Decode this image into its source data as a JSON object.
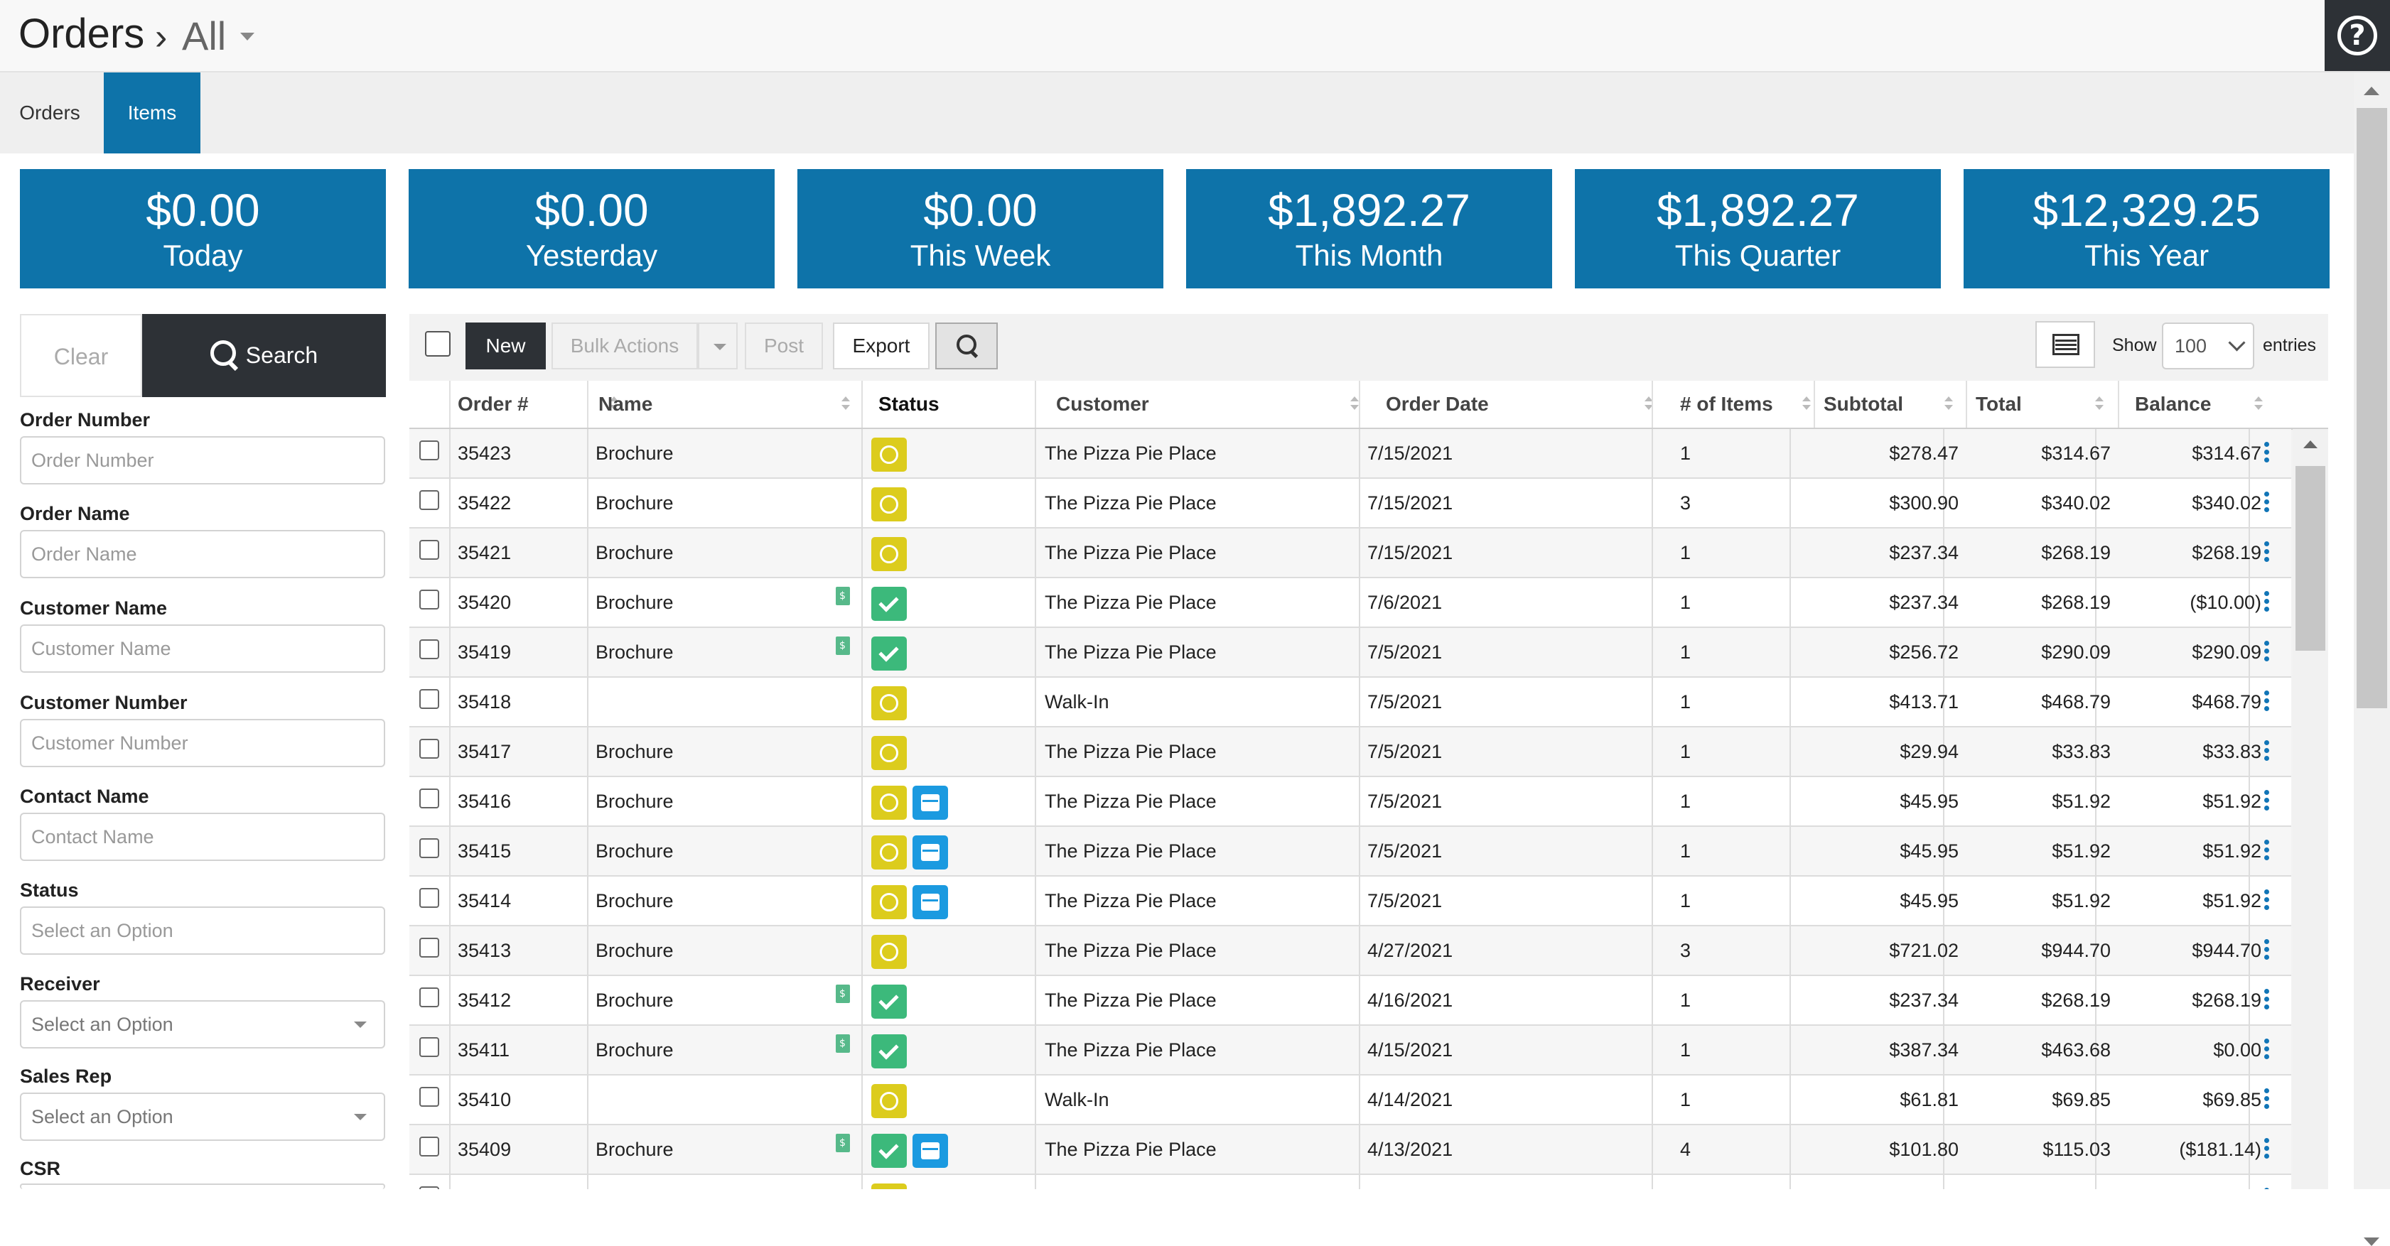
{
  "header": {
    "title": "Orders",
    "filter_value": "All"
  },
  "tabs": [
    {
      "label": "Orders"
    },
    {
      "label": "Items"
    }
  ],
  "summary": [
    {
      "amount": "$0.00",
      "label": "Today"
    },
    {
      "amount": "$0.00",
      "label": "Yesterday"
    },
    {
      "amount": "$0.00",
      "label": "This Week"
    },
    {
      "amount": "$1,892.27",
      "label": "This Month"
    },
    {
      "amount": "$1,892.27",
      "label": "This Quarter"
    },
    {
      "amount": "$12,329.25",
      "label": "This Year"
    }
  ],
  "filters": {
    "clear_label": "Clear",
    "search_label": "Search",
    "order_number": {
      "label": "Order Number",
      "placeholder": "Order Number"
    },
    "order_name": {
      "label": "Order Name",
      "placeholder": "Order Name"
    },
    "customer_name": {
      "label": "Customer Name",
      "placeholder": "Customer Name"
    },
    "customer_number": {
      "label": "Customer Number",
      "placeholder": "Customer Number"
    },
    "contact_name": {
      "label": "Contact Name",
      "placeholder": "Contact Name"
    },
    "status": {
      "label": "Status",
      "placeholder": "Select an Option"
    },
    "receiver": {
      "label": "Receiver",
      "value": "Select an Option"
    },
    "sales_rep": {
      "label": "Sales Rep",
      "value": "Select an Option"
    },
    "csr": {
      "label": "CSR"
    }
  },
  "toolbar": {
    "new_label": "New",
    "bulk_label": "Bulk Actions",
    "post_label": "Post",
    "export_label": "Export",
    "show_label": "Show",
    "page_size": "100",
    "entries_label": "entries"
  },
  "columns": {
    "order_num": "Order #",
    "name": "Name",
    "status": "Status",
    "customer": "Customer",
    "order_date": "Order Date",
    "items": "# of Items",
    "subtotal": "Subtotal",
    "total": "Total",
    "balance": "Balance"
  },
  "colors": {
    "accent": "#0e73a9",
    "dark": "#2d3136",
    "status_in_progress": "#dccc1d",
    "status_complete": "#3cb97b",
    "status_scheduled": "#1b9ae0"
  },
  "rows": [
    {
      "order": "35423",
      "name": "Brochure",
      "status": [
        "in-progress"
      ],
      "invoice": false,
      "customer": "The Pizza Pie Place",
      "date": "7/15/2021",
      "items": "1",
      "subtotal": "$278.47",
      "total": "$314.67",
      "balance": "$314.67"
    },
    {
      "order": "35422",
      "name": "Brochure",
      "status": [
        "in-progress"
      ],
      "invoice": false,
      "customer": "The Pizza Pie Place",
      "date": "7/15/2021",
      "items": "3",
      "subtotal": "$300.90",
      "total": "$340.02",
      "balance": "$340.02"
    },
    {
      "order": "35421",
      "name": "Brochure",
      "status": [
        "in-progress"
      ],
      "invoice": false,
      "customer": "The Pizza Pie Place",
      "date": "7/15/2021",
      "items": "1",
      "subtotal": "$237.34",
      "total": "$268.19",
      "balance": "$268.19"
    },
    {
      "order": "35420",
      "name": "Brochure",
      "status": [
        "complete"
      ],
      "invoice": true,
      "customer": "The Pizza Pie Place",
      "date": "7/6/2021",
      "items": "1",
      "subtotal": "$237.34",
      "total": "$268.19",
      "balance": "($10.00)"
    },
    {
      "order": "35419",
      "name": "Brochure",
      "status": [
        "complete"
      ],
      "invoice": true,
      "customer": "The Pizza Pie Place",
      "date": "7/5/2021",
      "items": "1",
      "subtotal": "$256.72",
      "total": "$290.09",
      "balance": "$290.09"
    },
    {
      "order": "35418",
      "name": "",
      "status": [
        "in-progress"
      ],
      "invoice": false,
      "customer": "Walk-In",
      "date": "7/5/2021",
      "items": "1",
      "subtotal": "$413.71",
      "total": "$468.79",
      "balance": "$468.79"
    },
    {
      "order": "35417",
      "name": "Brochure",
      "status": [
        "in-progress"
      ],
      "invoice": false,
      "customer": "The Pizza Pie Place",
      "date": "7/5/2021",
      "items": "1",
      "subtotal": "$29.94",
      "total": "$33.83",
      "balance": "$33.83"
    },
    {
      "order": "35416",
      "name": "Brochure",
      "status": [
        "in-progress",
        "scheduled"
      ],
      "invoice": false,
      "customer": "The Pizza Pie Place",
      "date": "7/5/2021",
      "items": "1",
      "subtotal": "$45.95",
      "total": "$51.92",
      "balance": "$51.92"
    },
    {
      "order": "35415",
      "name": "Brochure",
      "status": [
        "in-progress",
        "scheduled"
      ],
      "invoice": false,
      "customer": "The Pizza Pie Place",
      "date": "7/5/2021",
      "items": "1",
      "subtotal": "$45.95",
      "total": "$51.92",
      "balance": "$51.92"
    },
    {
      "order": "35414",
      "name": "Brochure",
      "status": [
        "in-progress",
        "scheduled"
      ],
      "invoice": false,
      "customer": "The Pizza Pie Place",
      "date": "7/5/2021",
      "items": "1",
      "subtotal": "$45.95",
      "total": "$51.92",
      "balance": "$51.92"
    },
    {
      "order": "35413",
      "name": "Brochure",
      "status": [
        "in-progress"
      ],
      "invoice": false,
      "customer": "The Pizza Pie Place",
      "date": "4/27/2021",
      "items": "3",
      "subtotal": "$721.02",
      "total": "$944.70",
      "balance": "$944.70"
    },
    {
      "order": "35412",
      "name": "Brochure",
      "status": [
        "complete"
      ],
      "invoice": true,
      "customer": "The Pizza Pie Place",
      "date": "4/16/2021",
      "items": "1",
      "subtotal": "$237.34",
      "total": "$268.19",
      "balance": "$268.19"
    },
    {
      "order": "35411",
      "name": "Brochure",
      "status": [
        "complete"
      ],
      "invoice": true,
      "customer": "The Pizza Pie Place",
      "date": "4/15/2021",
      "items": "1",
      "subtotal": "$387.34",
      "total": "$463.68",
      "balance": "$0.00"
    },
    {
      "order": "35410",
      "name": "",
      "status": [
        "in-progress"
      ],
      "invoice": false,
      "customer": "Walk-In",
      "date": "4/14/2021",
      "items": "1",
      "subtotal": "$61.81",
      "total": "$69.85",
      "balance": "$69.85"
    },
    {
      "order": "35409",
      "name": "Brochure",
      "status": [
        "complete",
        "scheduled"
      ],
      "invoice": true,
      "customer": "The Pizza Pie Place",
      "date": "4/13/2021",
      "items": "4",
      "subtotal": "$101.80",
      "total": "$115.03",
      "balance": "($181.14)"
    },
    {
      "order": "",
      "name": "",
      "status": [
        "in-progress"
      ],
      "invoice": false,
      "customer": "",
      "date": "",
      "items": "",
      "subtotal": "",
      "total": "",
      "balance": ""
    }
  ]
}
